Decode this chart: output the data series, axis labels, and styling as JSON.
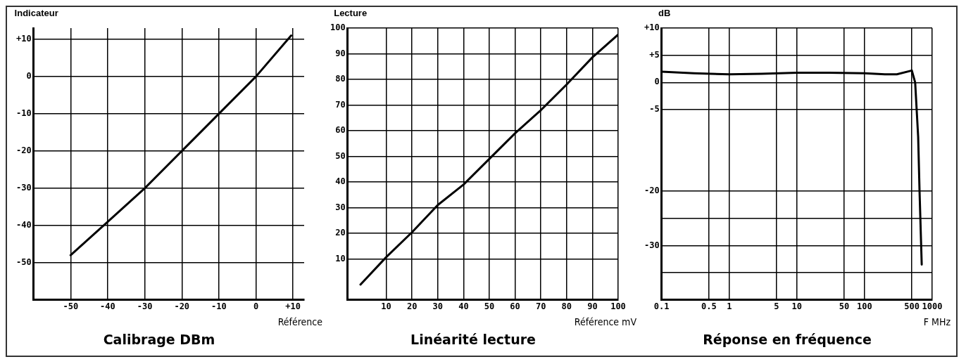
{
  "chart_data": [
    {
      "type": "line",
      "title": "Calibrage DBm",
      "ylabel": "Indicateur",
      "xlabel": "Référence",
      "xlim": [
        -60,
        13
      ],
      "ylim": [
        -60,
        13
      ],
      "xticks": [
        -50,
        -40,
        -30,
        -20,
        -10,
        0,
        {
          "value": 10,
          "label": "+10"
        }
      ],
      "yticks": [
        -50,
        -40,
        -30,
        -20,
        -10,
        0,
        {
          "value": 10,
          "label": "+10"
        }
      ],
      "grid": true,
      "legend": false,
      "marker": "none",
      "line_style": "solid",
      "series": [
        {
          "color": "#000000",
          "x": [
            -50,
            -40,
            -30,
            -20,
            -10,
            0,
            9.5
          ],
          "values": [
            -48,
            -39,
            -30,
            -20,
            -10,
            0,
            11
          ]
        }
      ]
    },
    {
      "type": "line",
      "title": "Linéarité lecture",
      "ylabel": "Lecture",
      "xlabel": "Référence mV",
      "xlim": [
        -5,
        100
      ],
      "ylim": [
        -6,
        100
      ],
      "xticks": [
        10,
        20,
        30,
        40,
        50,
        60,
        70,
        80,
        90,
        100
      ],
      "yticks": [
        10,
        20,
        30,
        40,
        50,
        60,
        70,
        80,
        90,
        100
      ],
      "grid": true,
      "legend": false,
      "marker": "none",
      "line_style": "solid",
      "series": [
        {
          "color": "#000000",
          "x": [
            0,
            10,
            20,
            30,
            40,
            50,
            60,
            70,
            80,
            90,
            100
          ],
          "values": [
            0,
            10.7,
            20.4,
            31,
            39,
            49,
            59,
            68,
            78,
            88.6,
            97.5
          ]
        }
      ]
    },
    {
      "type": "line",
      "title": "Réponse en fréquence",
      "ylabel": "dB",
      "xlabel": "F MHz",
      "log": "x",
      "xlim": [
        0.1,
        1000
      ],
      "ylim": [
        -40,
        10
      ],
      "xticks": [
        0.1,
        0.5,
        1,
        5,
        10,
        50,
        100,
        500,
        1000
      ],
      "yticks": [
        {
          "value": 10,
          "label": "+10"
        },
        {
          "value": 5,
          "label": "+5"
        },
        0,
        -5,
        -20,
        {
          "value": -25,
          "label": null
        },
        -30,
        {
          "value": -35,
          "label": null
        }
      ],
      "grid": true,
      "legend": false,
      "marker": "none",
      "line_style": "solid",
      "series": [
        {
          "color": "#000000",
          "x": [
            0.1,
            0.3,
            1,
            3,
            10,
            30,
            100,
            200,
            300,
            500,
            560,
            620,
            650,
            700
          ],
          "values": [
            2.0,
            1.7,
            1.5,
            1.6,
            1.8,
            1.8,
            1.7,
            1.5,
            1.5,
            2.2,
            0,
            -10,
            -20,
            -33.5
          ]
        }
      ]
    }
  ]
}
